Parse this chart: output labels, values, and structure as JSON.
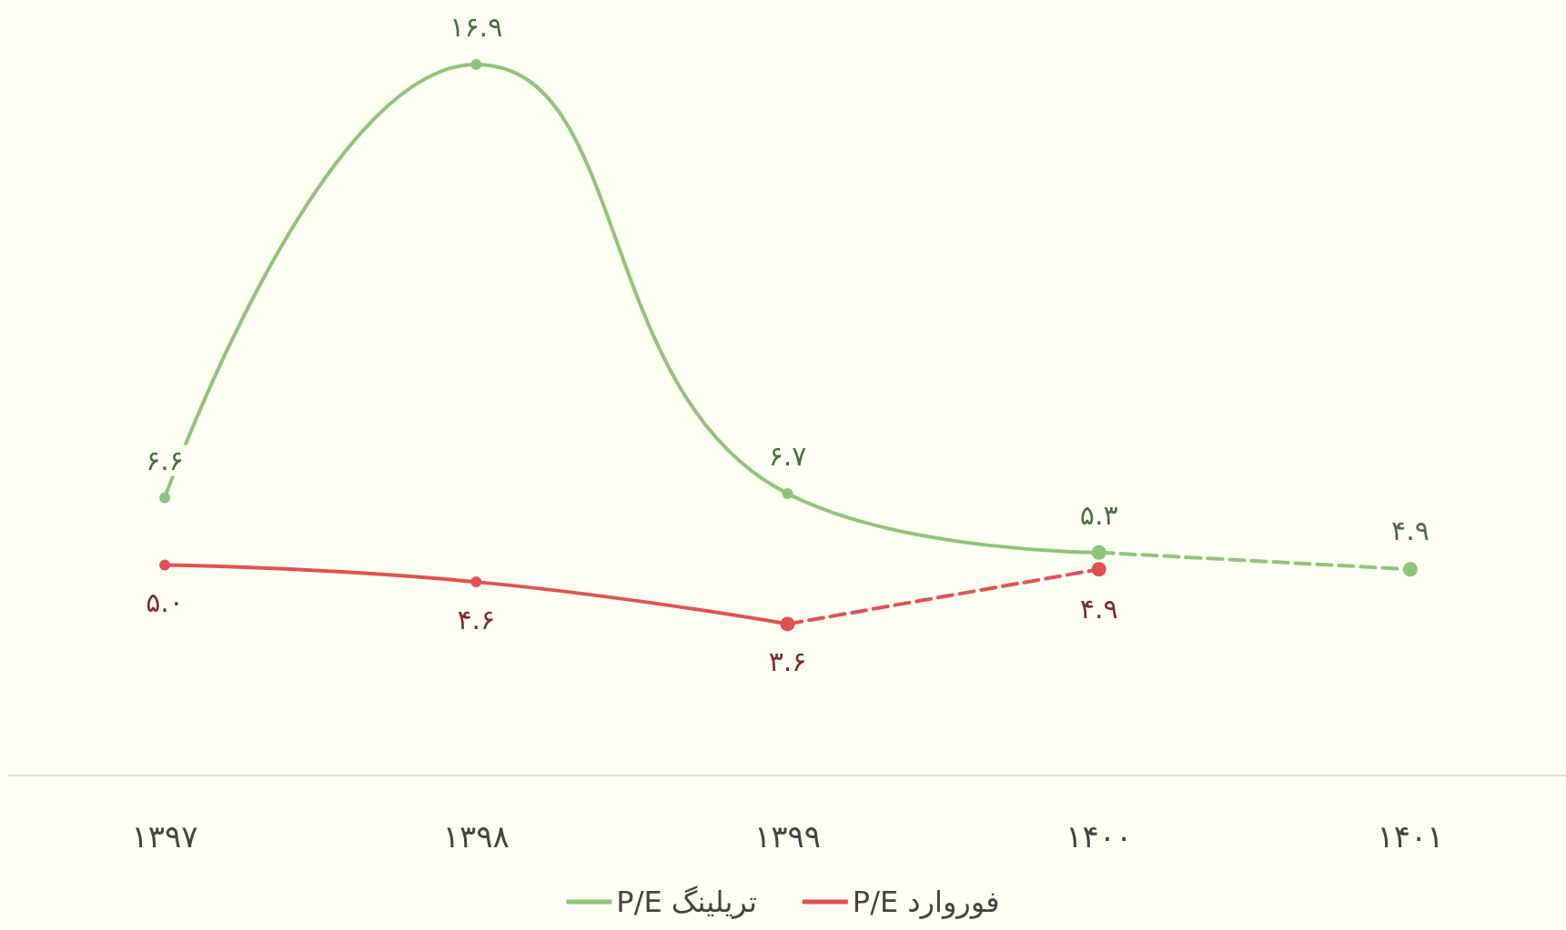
{
  "chart_data": {
    "type": "line",
    "categories": [
      "۱۳۹۷",
      "۱۳۹۸",
      "۱۳۹۹",
      "۱۴۰۰",
      "۱۴۰۱"
    ],
    "series": [
      {
        "name": "P/E تریلینگ",
        "color": "#8dc57a",
        "values": [
          6.6,
          16.9,
          6.7,
          5.3,
          null
        ],
        "value_labels": [
          "۶.۶",
          "۱۶.۹",
          "۶.۷",
          "۵.۳",
          null
        ],
        "line_style": "solid"
      },
      {
        "color": "#8dc57a",
        "values": [
          null,
          null,
          null,
          5.3,
          4.9
        ],
        "value_labels": [
          null,
          null,
          null,
          null,
          "۴.۹"
        ],
        "line_style": "dashed"
      },
      {
        "name": "P/E فوروارد",
        "color": "#e05252",
        "values": [
          5.0,
          4.6,
          3.6,
          null,
          null
        ],
        "value_labels": [
          "۵.۰",
          "۴.۶",
          "۳.۶",
          null,
          null
        ],
        "line_style": "solid"
      },
      {
        "color": "#e05252",
        "values": [
          null,
          null,
          3.6,
          4.9,
          null
        ],
        "value_labels": [
          null,
          null,
          null,
          "۴.۹",
          null
        ],
        "line_style": "dashed"
      }
    ],
    "marker": "circle",
    "grid": false,
    "legend": "bottom"
  }
}
